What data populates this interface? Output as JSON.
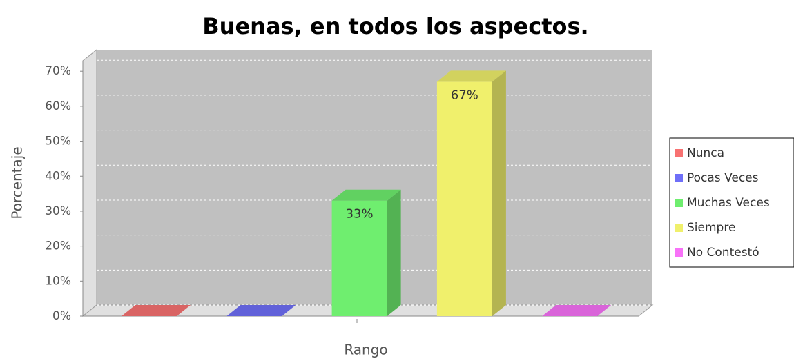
{
  "chart_data": {
    "type": "bar3d",
    "title": "Buenas, en todos los aspectos.",
    "x_label": "Rango",
    "y_label": "Porcentaje",
    "categories": [
      null
    ],
    "series": [
      {
        "name": "Nunca",
        "color": "#f87272",
        "values": [
          0
        ]
      },
      {
        "name": "Pocas Veces",
        "color": "#6f6ff8",
        "values": [
          0
        ]
      },
      {
        "name": "Muchas Veces",
        "color": "#6fee6f",
        "values": [
          33
        ],
        "value_labels": [
          "33%"
        ]
      },
      {
        "name": "Siempre",
        "color": "#f0f06c",
        "values": [
          67
        ],
        "value_labels": [
          "67%"
        ]
      },
      {
        "name": "No Contestó",
        "color": "#f872f8",
        "values": [
          0
        ]
      }
    ],
    "ylim": [
      0,
      73
    ],
    "yticks": [
      {
        "value": 0,
        "label": "0%"
      },
      {
        "value": 10,
        "label": "10%"
      },
      {
        "value": 20,
        "label": "20%"
      },
      {
        "value": 30,
        "label": "30%"
      },
      {
        "value": 40,
        "label": "40%"
      },
      {
        "value": 50,
        "label": "50%"
      },
      {
        "value": 60,
        "label": "60%"
      },
      {
        "value": 70,
        "label": "70%"
      }
    ],
    "grid": true,
    "legend": "right"
  }
}
